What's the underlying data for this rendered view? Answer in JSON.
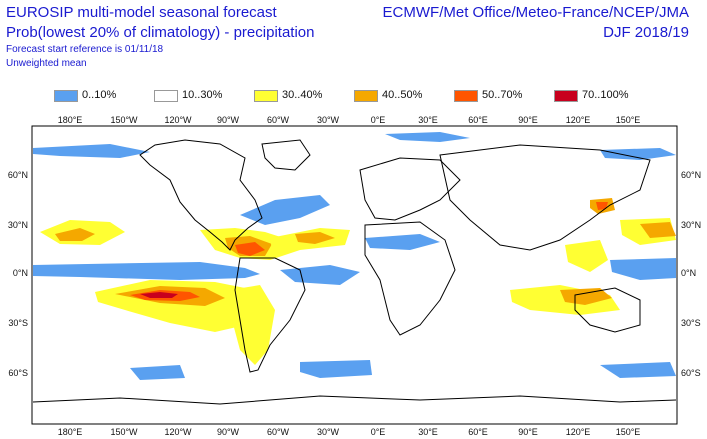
{
  "header": {
    "title_line1": "EUROSIP multi-model seasonal forecast",
    "title_line2": "Prob(lowest 20% of climatology) - precipitation",
    "forecast_ref": "Forecast start reference is 01/11/18",
    "weighting": "Unweighted mean",
    "centres": "ECMWF/Met Office/Meteo-France/NCEP/JMA",
    "season": "DJF 2018/19"
  },
  "legend": [
    {
      "label": "0..10%",
      "color": "#5aa0f0"
    },
    {
      "label": "10..30%",
      "color": "#ffffff"
    },
    {
      "label": "30..40%",
      "color": "#ffff33"
    },
    {
      "label": "40..50%",
      "color": "#f5a800"
    },
    {
      "label": "50..70%",
      "color": "#ff5500"
    },
    {
      "label": "70..100%",
      "color": "#c8001e"
    }
  ],
  "axes": {
    "top_lon_labels": [
      "180°E",
      "150°W",
      "120°W",
      "90°W",
      "60°W",
      "30°W",
      "0°E",
      "30°E",
      "60°E",
      "90°E",
      "120°E",
      "150°E"
    ],
    "bottom_lon_labels": [
      "180°E",
      "150°W",
      "120°W",
      "90°W",
      "60°W",
      "30°W",
      "0°E",
      "30°E",
      "60°E",
      "90°E",
      "120°E",
      "150°E"
    ],
    "left_lat_labels": [
      "60°N",
      "30°N",
      "0°N",
      "30°S",
      "60°S"
    ],
    "right_lat_labels": [
      "60°N",
      "30°N",
      "0°N",
      "30°S",
      "60°S"
    ]
  }
}
